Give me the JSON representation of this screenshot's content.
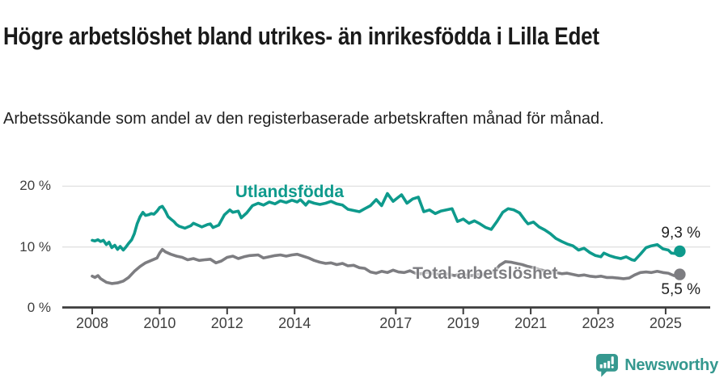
{
  "header": {
    "title": "Högre arbetslöshet bland utrikes- än inrikesfödda i Lilla Edet",
    "subtitle": "Arbetssökande som andel av den registerbaserade arbetskraften månad för månad."
  },
  "footer": {
    "brand": "Newsworthy",
    "brand_color": "#35988F"
  },
  "chart_data": {
    "type": "line",
    "title": "Högre arbetslöshet bland utrikes- än inrikesfödda i Lilla Edet",
    "subtitle": "Arbetssökande som andel av den registerbaserade arbetskraften månad för månad.",
    "xlabel": "",
    "ylabel": "",
    "ylim": [
      0,
      22
    ],
    "grid": "horizontal",
    "legend_position": "inline-labels",
    "style": {
      "grid_color": "#e1e1e1",
      "axis_color": "#3c3c3c",
      "tick_label_color": "#3f3f3f",
      "background": "#ffffff"
    },
    "y_axis": {
      "ticks": [
        {
          "value": 0,
          "label": "0 %"
        },
        {
          "value": 10,
          "label": "10 %"
        },
        {
          "value": 20,
          "label": "20 %"
        }
      ]
    },
    "x_axis": {
      "ticks": [
        {
          "value": 2008,
          "label": "2008"
        },
        {
          "value": 2010,
          "label": "2010"
        },
        {
          "value": 2012,
          "label": "2012"
        },
        {
          "value": 2014,
          "label": "2014"
        },
        {
          "value": 2017,
          "label": "2017"
        },
        {
          "value": 2019,
          "label": "2019"
        },
        {
          "value": 2021,
          "label": "2021"
        },
        {
          "value": 2023,
          "label": "2023"
        },
        {
          "value": 2025,
          "label": "2025"
        }
      ]
    },
    "series": [
      {
        "name": "Utlandsfödda",
        "color": "#0e9a8c",
        "end_label": "9,3 %",
        "end_label_side": "above",
        "label_anchor": [
          2013.85,
          19.0
        ],
        "points": [
          [
            2008.0,
            11.1
          ],
          [
            2008.08,
            11.0
          ],
          [
            2008.17,
            11.2
          ],
          [
            2008.25,
            10.9
          ],
          [
            2008.33,
            11.1
          ],
          [
            2008.42,
            10.4
          ],
          [
            2008.5,
            10.8
          ],
          [
            2008.58,
            9.9
          ],
          [
            2008.67,
            10.3
          ],
          [
            2008.75,
            9.6
          ],
          [
            2008.83,
            10.1
          ],
          [
            2008.92,
            9.5
          ],
          [
            2009.0,
            10.0
          ],
          [
            2009.08,
            10.6
          ],
          [
            2009.17,
            11.2
          ],
          [
            2009.25,
            12.2
          ],
          [
            2009.33,
            13.8
          ],
          [
            2009.42,
            15.0
          ],
          [
            2009.5,
            15.7
          ],
          [
            2009.58,
            15.2
          ],
          [
            2009.67,
            15.3
          ],
          [
            2009.75,
            15.5
          ],
          [
            2009.83,
            15.4
          ],
          [
            2009.92,
            15.9
          ],
          [
            2010.0,
            16.5
          ],
          [
            2010.08,
            16.7
          ],
          [
            2010.17,
            15.9
          ],
          [
            2010.25,
            15.0
          ],
          [
            2010.33,
            14.6
          ],
          [
            2010.42,
            14.2
          ],
          [
            2010.5,
            13.7
          ],
          [
            2010.58,
            13.4
          ],
          [
            2010.75,
            13.1
          ],
          [
            2010.92,
            13.5
          ],
          [
            2011.0,
            13.9
          ],
          [
            2011.17,
            13.5
          ],
          [
            2011.25,
            13.3
          ],
          [
            2011.42,
            13.7
          ],
          [
            2011.5,
            13.8
          ],
          [
            2011.58,
            13.2
          ],
          [
            2011.75,
            13.6
          ],
          [
            2011.92,
            15.3
          ],
          [
            2012.08,
            16.1
          ],
          [
            2012.17,
            15.7
          ],
          [
            2012.33,
            15.9
          ],
          [
            2012.42,
            14.8
          ],
          [
            2012.58,
            15.6
          ],
          [
            2012.75,
            16.8
          ],
          [
            2012.92,
            17.2
          ],
          [
            2013.08,
            16.9
          ],
          [
            2013.25,
            17.4
          ],
          [
            2013.42,
            17.1
          ],
          [
            2013.58,
            17.6
          ],
          [
            2013.75,
            17.3
          ],
          [
            2013.92,
            17.7
          ],
          [
            2014.08,
            17.4
          ],
          [
            2014.17,
            17.8
          ],
          [
            2014.33,
            16.9
          ],
          [
            2014.42,
            17.5
          ],
          [
            2014.58,
            17.2
          ],
          [
            2014.75,
            17.0
          ],
          [
            2014.92,
            17.2
          ],
          [
            2015.08,
            17.5
          ],
          [
            2015.25,
            17.1
          ],
          [
            2015.42,
            16.9
          ],
          [
            2015.58,
            16.2
          ],
          [
            2015.75,
            16.0
          ],
          [
            2015.92,
            15.8
          ],
          [
            2016.08,
            16.3
          ],
          [
            2016.25,
            16.8
          ],
          [
            2016.42,
            17.8
          ],
          [
            2016.58,
            16.8
          ],
          [
            2016.75,
            18.8
          ],
          [
            2016.92,
            17.5
          ],
          [
            2017.08,
            18.2
          ],
          [
            2017.17,
            18.6
          ],
          [
            2017.33,
            17.2
          ],
          [
            2017.5,
            17.9
          ],
          [
            2017.67,
            18.2
          ],
          [
            2017.83,
            15.8
          ],
          [
            2018.0,
            16.1
          ],
          [
            2018.17,
            15.5
          ],
          [
            2018.33,
            15.9
          ],
          [
            2018.5,
            16.1
          ],
          [
            2018.67,
            16.3
          ],
          [
            2018.83,
            14.2
          ],
          [
            2019.0,
            14.6
          ],
          [
            2019.17,
            13.9
          ],
          [
            2019.33,
            14.3
          ],
          [
            2019.5,
            13.8
          ],
          [
            2019.67,
            13.2
          ],
          [
            2019.83,
            12.9
          ],
          [
            2020.0,
            14.2
          ],
          [
            2020.17,
            15.7
          ],
          [
            2020.33,
            16.3
          ],
          [
            2020.5,
            16.1
          ],
          [
            2020.67,
            15.6
          ],
          [
            2020.83,
            14.4
          ],
          [
            2020.92,
            13.8
          ],
          [
            2021.08,
            14.1
          ],
          [
            2021.25,
            13.3
          ],
          [
            2021.42,
            12.8
          ],
          [
            2021.58,
            12.2
          ],
          [
            2021.75,
            11.4
          ],
          [
            2021.92,
            10.9
          ],
          [
            2022.08,
            10.5
          ],
          [
            2022.25,
            10.2
          ],
          [
            2022.42,
            9.5
          ],
          [
            2022.58,
            9.8
          ],
          [
            2022.75,
            9.1
          ],
          [
            2022.92,
            8.6
          ],
          [
            2023.08,
            8.4
          ],
          [
            2023.17,
            9.0
          ],
          [
            2023.33,
            8.6
          ],
          [
            2023.5,
            8.3
          ],
          [
            2023.67,
            8.1
          ],
          [
            2023.83,
            8.4
          ],
          [
            2024.0,
            7.9
          ],
          [
            2024.08,
            7.8
          ],
          [
            2024.25,
            8.8
          ],
          [
            2024.42,
            9.9
          ],
          [
            2024.58,
            10.2
          ],
          [
            2024.75,
            10.4
          ],
          [
            2024.92,
            9.7
          ],
          [
            2025.08,
            9.5
          ],
          [
            2025.17,
            9.0
          ],
          [
            2025.33,
            8.9
          ],
          [
            2025.42,
            9.3
          ]
        ]
      },
      {
        "name": "Total arbetslöshet",
        "color": "#7d7d81",
        "end_label": "5,5 %",
        "end_label_side": "below",
        "label_anchor": [
          2019.65,
          5.55
        ],
        "points": [
          [
            2008.0,
            5.2
          ],
          [
            2008.08,
            5.0
          ],
          [
            2008.17,
            5.3
          ],
          [
            2008.25,
            4.8
          ],
          [
            2008.42,
            4.2
          ],
          [
            2008.58,
            4.0
          ],
          [
            2008.75,
            4.1
          ],
          [
            2008.92,
            4.4
          ],
          [
            2009.08,
            5.0
          ],
          [
            2009.25,
            6.0
          ],
          [
            2009.42,
            6.8
          ],
          [
            2009.58,
            7.4
          ],
          [
            2009.75,
            7.8
          ],
          [
            2009.92,
            8.2
          ],
          [
            2010.0,
            9.0
          ],
          [
            2010.08,
            9.6
          ],
          [
            2010.17,
            9.2
          ],
          [
            2010.33,
            8.8
          ],
          [
            2010.5,
            8.5
          ],
          [
            2010.67,
            8.3
          ],
          [
            2010.83,
            7.9
          ],
          [
            2011.0,
            8.1
          ],
          [
            2011.17,
            7.8
          ],
          [
            2011.33,
            7.9
          ],
          [
            2011.5,
            8.0
          ],
          [
            2011.67,
            7.4
          ],
          [
            2011.83,
            7.7
          ],
          [
            2012.0,
            8.3
          ],
          [
            2012.17,
            8.5
          ],
          [
            2012.33,
            8.1
          ],
          [
            2012.5,
            8.4
          ],
          [
            2012.67,
            8.6
          ],
          [
            2012.92,
            8.7
          ],
          [
            2013.08,
            8.2
          ],
          [
            2013.25,
            8.4
          ],
          [
            2013.42,
            8.6
          ],
          [
            2013.58,
            8.7
          ],
          [
            2013.75,
            8.5
          ],
          [
            2013.92,
            8.7
          ],
          [
            2014.08,
            8.8
          ],
          [
            2014.25,
            8.5
          ],
          [
            2014.42,
            8.2
          ],
          [
            2014.58,
            7.8
          ],
          [
            2014.75,
            7.5
          ],
          [
            2014.92,
            7.3
          ],
          [
            2015.08,
            7.4
          ],
          [
            2015.25,
            7.1
          ],
          [
            2015.42,
            7.3
          ],
          [
            2015.58,
            6.9
          ],
          [
            2015.75,
            7.0
          ],
          [
            2015.92,
            6.6
          ],
          [
            2016.08,
            6.5
          ],
          [
            2016.25,
            5.9
          ],
          [
            2016.42,
            5.7
          ],
          [
            2016.58,
            6.0
          ],
          [
            2016.75,
            5.8
          ],
          [
            2016.92,
            6.2
          ],
          [
            2017.08,
            5.9
          ],
          [
            2017.25,
            5.8
          ],
          [
            2017.42,
            6.1
          ],
          [
            2017.58,
            5.7
          ],
          [
            2017.75,
            5.6
          ],
          [
            2017.92,
            5.9
          ],
          [
            2018.08,
            5.7
          ],
          [
            2018.25,
            5.5
          ],
          [
            2018.42,
            5.7
          ],
          [
            2018.58,
            5.5
          ],
          [
            2018.75,
            5.3
          ],
          [
            2018.92,
            5.6
          ],
          [
            2019.08,
            5.4
          ],
          [
            2019.25,
            5.3
          ],
          [
            2019.42,
            5.5
          ],
          [
            2019.58,
            5.4
          ],
          [
            2019.75,
            5.6
          ],
          [
            2019.92,
            6.0
          ],
          [
            2020.08,
            7.0
          ],
          [
            2020.25,
            7.6
          ],
          [
            2020.42,
            7.5
          ],
          [
            2020.58,
            7.3
          ],
          [
            2020.75,
            7.1
          ],
          [
            2020.92,
            6.8
          ],
          [
            2021.08,
            6.6
          ],
          [
            2021.25,
            6.3
          ],
          [
            2021.42,
            6.1
          ],
          [
            2021.58,
            5.9
          ],
          [
            2021.75,
            5.8
          ],
          [
            2021.92,
            5.6
          ],
          [
            2022.08,
            5.7
          ],
          [
            2022.25,
            5.5
          ],
          [
            2022.42,
            5.3
          ],
          [
            2022.58,
            5.4
          ],
          [
            2022.75,
            5.2
          ],
          [
            2022.92,
            5.1
          ],
          [
            2023.08,
            5.2
          ],
          [
            2023.25,
            5.0
          ],
          [
            2023.42,
            5.0
          ],
          [
            2023.58,
            4.9
          ],
          [
            2023.75,
            4.8
          ],
          [
            2023.92,
            4.9
          ],
          [
            2024.08,
            5.4
          ],
          [
            2024.25,
            5.8
          ],
          [
            2024.42,
            5.9
          ],
          [
            2024.58,
            5.8
          ],
          [
            2024.75,
            6.0
          ],
          [
            2024.92,
            5.8
          ],
          [
            2025.08,
            5.7
          ],
          [
            2025.25,
            5.3
          ],
          [
            2025.42,
            5.5
          ]
        ]
      }
    ]
  }
}
